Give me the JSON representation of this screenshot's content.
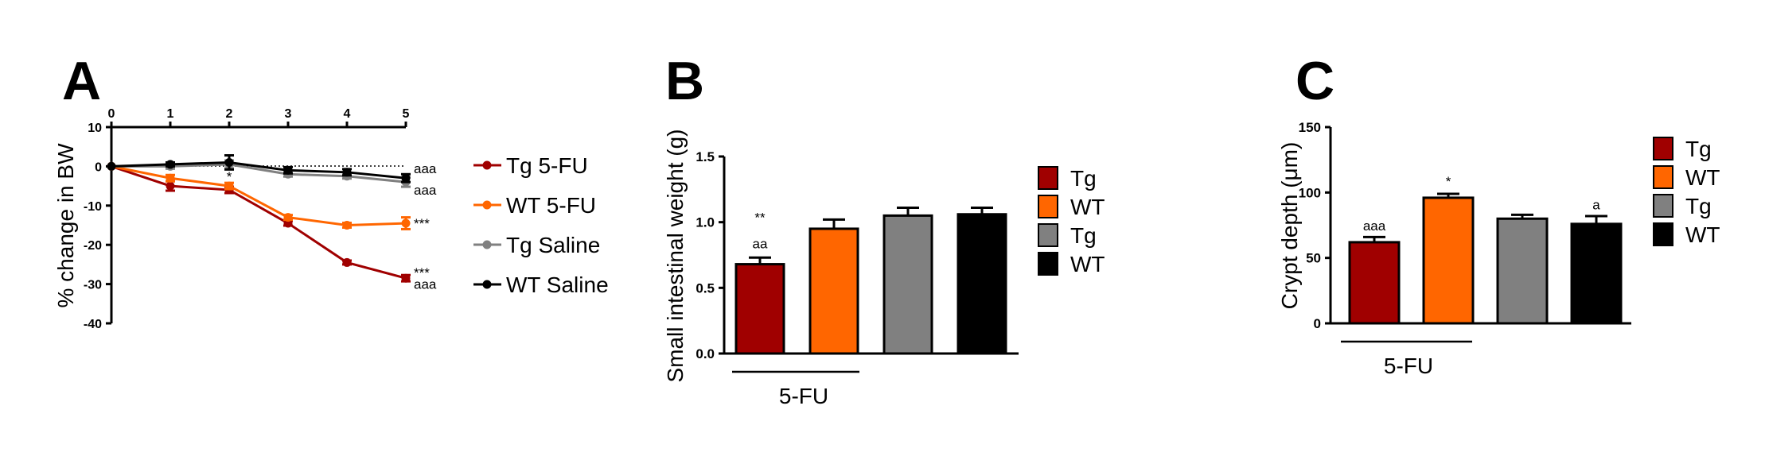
{
  "colors": {
    "tg_5fu": "#A00000",
    "wt_5fu": "#FF6600",
    "tg_saline": "#808080",
    "wt_saline": "#000000",
    "dotted_ref": "#000000"
  },
  "chart_data": [
    {
      "panel": "A",
      "type": "line",
      "x": [
        0,
        1,
        2,
        3,
        4,
        5
      ],
      "x_ticks": [
        "0",
        "1",
        "2",
        "3",
        "4",
        "5"
      ],
      "y_ticks": [
        "10",
        "0",
        "-10",
        "-20",
        "-30",
        "-40"
      ],
      "ylabel": "% change in BW",
      "xlim": [
        0,
        5
      ],
      "ylim": [
        -40,
        10
      ],
      "reference_line": 0,
      "series": [
        {
          "name": "Tg 5-FU",
          "color_key": "tg_5fu",
          "values": [
            0,
            -5,
            -6,
            -14.5,
            -24.5,
            -28.5
          ],
          "errors": [
            0,
            1.2,
            0.8,
            0.6,
            0.5,
            0.8
          ]
        },
        {
          "name": "WT 5-FU",
          "color_key": "wt_5fu",
          "values": [
            0,
            -3,
            -5,
            -13,
            -15,
            -14.5
          ],
          "errors": [
            0,
            0.8,
            0.8,
            0.6,
            0.6,
            1.5
          ]
        },
        {
          "name": "Tg Saline",
          "color_key": "tg_saline",
          "values": [
            0,
            0,
            0.5,
            -2,
            -2.5,
            -4
          ],
          "errors": [
            0,
            0.6,
            1,
            0.6,
            0.6,
            1.2
          ]
        },
        {
          "name": "WT Saline",
          "color_key": "wt_saline",
          "values": [
            0,
            0.5,
            1,
            -1,
            -1.5,
            -3
          ],
          "errors": [
            0,
            0.5,
            1.8,
            0.8,
            0.8,
            1
          ]
        }
      ],
      "annotations": [
        {
          "text": "aaa",
          "x": 5,
          "y": -0.5
        },
        {
          "text": "aaa",
          "x": 5,
          "y": -6
        },
        {
          "text": "***",
          "x": 5,
          "y": -14.5
        },
        {
          "text": "***",
          "x": 5,
          "y": -27
        },
        {
          "text": "aaa",
          "x": 5,
          "y": -30
        },
        {
          "text": "*",
          "x": 2,
          "y": -2.5
        }
      ]
    },
    {
      "panel": "B",
      "type": "bar",
      "categories": [
        "Tg",
        "WT",
        "Tg",
        "WT"
      ],
      "values": [
        0.68,
        0.95,
        1.05,
        1.06
      ],
      "errors": [
        0.05,
        0.07,
        0.06,
        0.05
      ],
      "color_keys": [
        "tg_5fu",
        "wt_5fu",
        "tg_saline",
        "wt_saline"
      ],
      "ylabel": "Small intestinal weight (g)",
      "y_ticks": [
        "0.0",
        "0.5",
        "1.0",
        "1.5"
      ],
      "ylim": [
        0,
        1.5
      ],
      "group_label": "5-FU",
      "annotations": [
        {
          "text": "**",
          "bar": 0,
          "y": 1.0
        },
        {
          "text": "aa",
          "bar": 0,
          "y": 0.8
        }
      ]
    },
    {
      "panel": "C",
      "type": "bar",
      "categories": [
        "Tg",
        "WT",
        "Tg",
        "WT"
      ],
      "values": [
        62,
        96,
        80,
        76
      ],
      "errors": [
        4,
        3,
        3,
        6
      ],
      "color_keys": [
        "tg_5fu",
        "wt_5fu",
        "tg_saline",
        "wt_saline"
      ],
      "ylabel": "Crypt depth (μm)",
      "y_ticks": [
        "0",
        "50",
        "100",
        "150"
      ],
      "ylim": [
        0,
        150
      ],
      "group_label": "5-FU",
      "annotations": [
        {
          "text": "aaa",
          "bar": 0,
          "y": 71
        },
        {
          "text": "*",
          "bar": 1,
          "y": 105
        },
        {
          "text": "a",
          "bar": 3,
          "y": 87
        }
      ]
    }
  ]
}
